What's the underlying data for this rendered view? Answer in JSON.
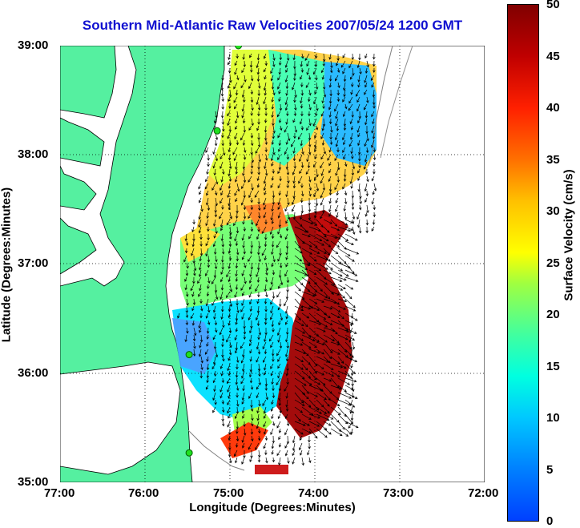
{
  "title": "Southern Mid-Atlantic Raw Velocities 2007/05/24 1200 GMT",
  "xlabel": "Longitude (Degrees:Minutes)",
  "ylabel": "Latitude (Degrees:Minutes)",
  "x_ticks": [
    "77:00",
    "76:00",
    "75:00",
    "74:00",
    "73:00",
    "72:00"
  ],
  "y_ticks": [
    "39:00",
    "38:00",
    "37:00",
    "36:00",
    "35:00"
  ],
  "colorbar": {
    "label": "Surface Velocity (cm/s)",
    "ticks": [
      "50",
      "45",
      "40",
      "35",
      "30",
      "25",
      "20",
      "15",
      "10",
      "5",
      "0"
    ],
    "range": [
      0,
      50
    ]
  },
  "map_extent": {
    "lon": [
      -77,
      -72
    ],
    "lat": [
      35,
      39
    ]
  },
  "colors": {
    "land": "#55f0a0",
    "title": "#1010d0",
    "arrow": "#000000"
  },
  "stations": [
    {
      "lon": -74.9,
      "lat": 39.0
    },
    {
      "lon": -75.15,
      "lat": 38.22
    },
    {
      "lon": -75.48,
      "lat": 36.17
    },
    {
      "lon": -75.48,
      "lat": 35.27
    }
  ]
}
